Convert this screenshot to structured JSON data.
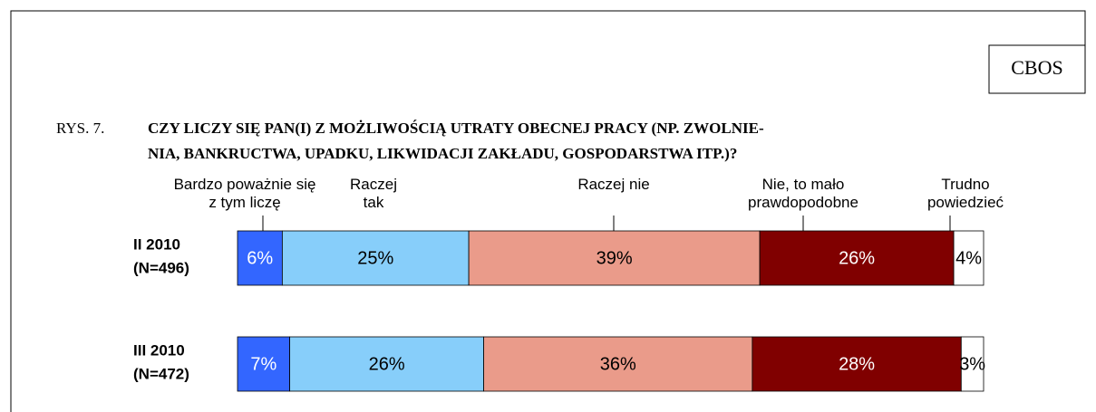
{
  "header": {
    "source": "CBOS",
    "figure_label": "RYS. 7.",
    "title_lines": [
      "CZY LICZY SIĘ PAN(I) Z MOŻLIWOŚCIĄ UTRATY OBECNEJ PRACY (NP. ZWOLNIE-",
      "NIA, BANKRUCTWA, UPADKU, LIKWIDACJI ZAKŁADU, GOSPODARSTWA ITP.)?"
    ]
  },
  "chart_data": {
    "type": "stacked_bar_horizontal",
    "categories": [
      "II 2010",
      "III 2010"
    ],
    "category_notes": [
      "(N=496)",
      "(N=472)"
    ],
    "xlim": [
      0,
      100
    ],
    "series": [
      {
        "name": "Bardzo poważnie się z tym liczę",
        "color": "#3366ff",
        "label_color": "#ffffff",
        "values": [
          6,
          7
        ],
        "value_labels": [
          "6%",
          "7%"
        ]
      },
      {
        "name": "Raczej tak",
        "color": "#87cefa",
        "label_color": "#000000",
        "values": [
          25,
          26
        ],
        "value_labels": [
          "25%",
          "26%"
        ]
      },
      {
        "name": "Raczej nie",
        "color": "#ea9b8a",
        "label_color": "#000000",
        "values": [
          39,
          36
        ],
        "value_labels": [
          "39%",
          "36%"
        ]
      },
      {
        "name": "Nie, to mało prawdopodobne",
        "color": "#800000",
        "label_color": "#ffffff",
        "values": [
          26,
          28
        ],
        "value_labels": [
          "26%",
          "28%"
        ]
      },
      {
        "name": "Trudno powiedzieć",
        "color": "#ffffff",
        "label_color": "#000000",
        "values": [
          4,
          3
        ],
        "value_labels": [
          "4%",
          "3%"
        ]
      }
    ]
  }
}
